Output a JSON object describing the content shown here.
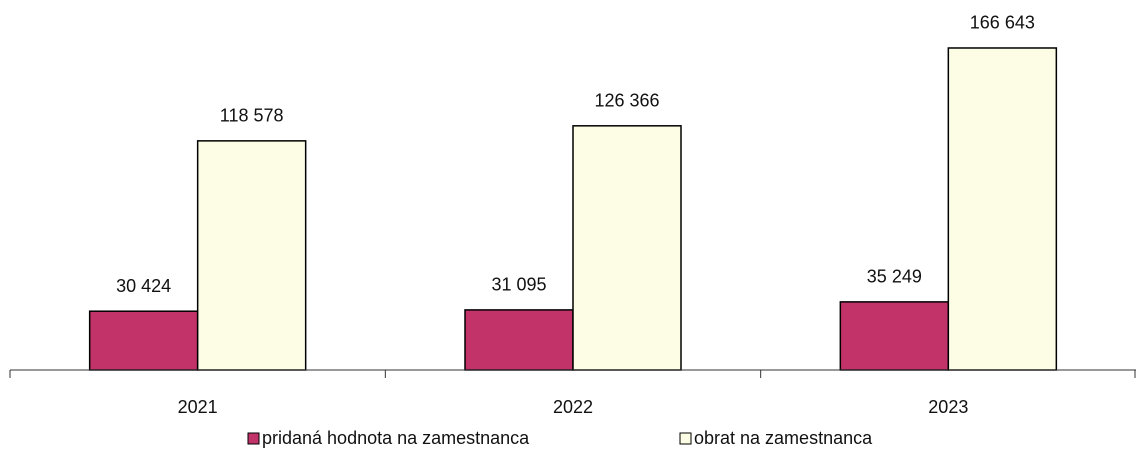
{
  "chart_data": {
    "type": "bar",
    "categories": [
      "2021",
      "2022",
      "2023"
    ],
    "series": [
      {
        "name": "pridaná hodnota na zamestnanca",
        "color": "#c2336a",
        "values": [
          30424,
          31095,
          35249
        ],
        "value_labels": [
          "30 424",
          "31 095",
          "35 249"
        ]
      },
      {
        "name": "obrat na zamestnanca",
        "color": "#fdfde6",
        "values": [
          118578,
          126366,
          166643
        ],
        "value_labels": [
          "118 578",
          "126 366",
          "166 643"
        ]
      }
    ],
    "ylim": [
      0,
      170000
    ],
    "grid": false,
    "legend": "bottom"
  }
}
